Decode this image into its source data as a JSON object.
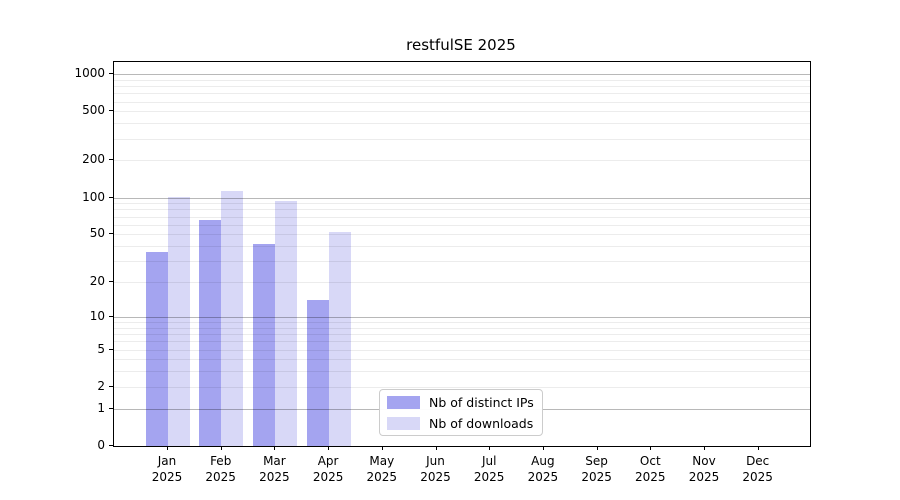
{
  "title": "restfulSE 2025",
  "legend": {
    "items": [
      {
        "label": "Nb of distinct IPs",
        "color": "#a4a4f0"
      },
      {
        "label": "Nb of downloads",
        "color": "#d8d8f7"
      }
    ]
  },
  "chart_data": {
    "type": "bar",
    "title": "restfulSE 2025",
    "categories": [
      "Jan",
      "Feb",
      "Mar",
      "Apr",
      "May",
      "Jun",
      "Jul",
      "Aug",
      "Sep",
      "Oct",
      "Nov",
      "Dec"
    ],
    "year_label": "2025",
    "series": [
      {
        "name": "Nb of distinct IPs",
        "color": "#a4a4f0",
        "values": [
          36,
          65,
          42,
          14,
          null,
          null,
          null,
          null,
          null,
          null,
          null,
          null
        ]
      },
      {
        "name": "Nb of downloads",
        "color": "#d8d8f7",
        "values": [
          101,
          113,
          93,
          52,
          null,
          null,
          null,
          null,
          null,
          null,
          null,
          null
        ]
      }
    ],
    "xlabel": "",
    "ylabel": "",
    "yscale": "log10(1+y)",
    "ylim": [
      0,
      1250
    ],
    "yticks": [
      0,
      1,
      2,
      5,
      10,
      20,
      50,
      100,
      200,
      500,
      1000
    ],
    "major_gridlines": [
      1,
      10,
      100,
      1000
    ],
    "minor_gridline_decades": [
      1,
      10,
      100
    ],
    "grid": "major+minor horizontal",
    "legend_position": "lower center inside plot"
  }
}
